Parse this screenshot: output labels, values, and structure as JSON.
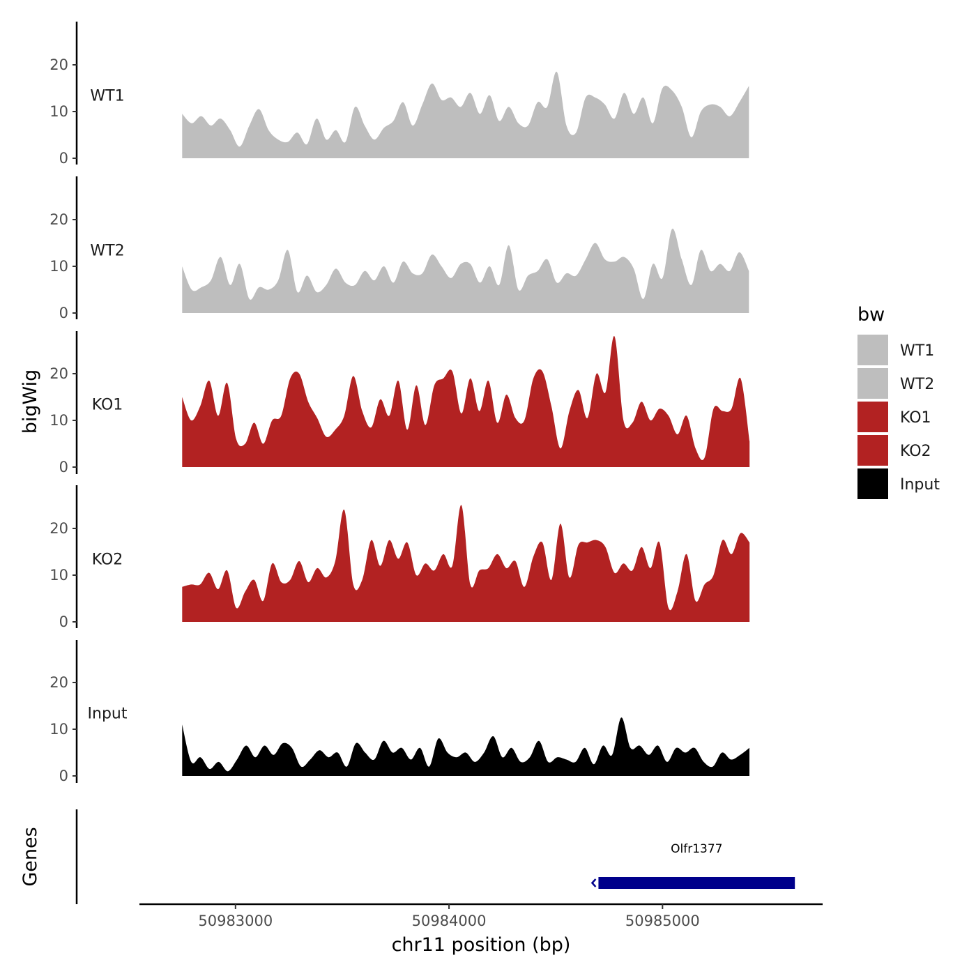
{
  "chart_data": {
    "type": "area",
    "title": "",
    "xlabel": "chr11 position (bp)",
    "ylabel": "bigWig",
    "genes_label": "Genes",
    "xlim": [
      50982550,
      50985750
    ],
    "ylim": [
      0,
      30
    ],
    "x_ticks": [
      50983000,
      50984000,
      50985000
    ],
    "x_tick_labels": [
      "50983000",
      "50984000",
      "50985000"
    ],
    "y_ticks": [
      0,
      10,
      20
    ],
    "y_tick_labels": [
      "0",
      "10",
      "20"
    ],
    "legend_title": "bw",
    "legend": [
      {
        "label": "WT1",
        "color": "#bebebe"
      },
      {
        "label": "WT2",
        "color": "#bebebe"
      },
      {
        "label": "KO1",
        "color": "#b22222"
      },
      {
        "label": "KO2",
        "color": "#b22222"
      },
      {
        "label": "Input",
        "color": "#000000"
      }
    ],
    "x_start": 50982750,
    "x_step": 45,
    "series": [
      {
        "name": "WT1",
        "label": "WT1",
        "color": "#bebebe",
        "values": [
          9.5,
          7.5,
          9,
          7,
          8.5,
          6,
          2.5,
          7,
          10.5,
          6,
          4,
          3.5,
          5.5,
          3,
          8.5,
          4,
          6,
          3.5,
          11,
          7,
          4,
          6.5,
          8,
          12,
          7,
          11.5,
          16,
          12.5,
          13,
          11,
          14,
          9.5,
          13.5,
          8,
          11,
          7.5,
          7,
          12,
          11,
          18.5,
          7,
          5.5,
          13,
          13,
          11.5,
          8.5,
          14,
          9.5,
          13,
          7.5,
          15,
          14.5,
          11,
          4.5,
          10,
          11.5,
          11,
          9,
          12,
          15.5
        ]
      },
      {
        "name": "WT2",
        "label": "WT2",
        "color": "#bebebe",
        "values": [
          10,
          5,
          5.5,
          7,
          12,
          6,
          10.5,
          3,
          5.5,
          5,
          7,
          13.5,
          4.5,
          8,
          4.5,
          6,
          9.5,
          6.5,
          6,
          9,
          7,
          10,
          6.5,
          11,
          8.5,
          8.5,
          12.5,
          10,
          7.5,
          10.5,
          10.5,
          6.5,
          10,
          6,
          14.5,
          5,
          8,
          9,
          11.5,
          6.5,
          8.5,
          8,
          11.5,
          15,
          11.5,
          11,
          12,
          9.5,
          3,
          10.5,
          7.5,
          18,
          11.5,
          6,
          13.5,
          9,
          10.5,
          9,
          13,
          9
        ]
      },
      {
        "name": "KO1",
        "label": "KO1",
        "color": "#b22222",
        "values": [
          15,
          10,
          13,
          18.5,
          11,
          18,
          6,
          5,
          9.5,
          5,
          10,
          11,
          19,
          20,
          14,
          10.5,
          6.5,
          8,
          11,
          19.5,
          12,
          8.5,
          14.5,
          11,
          18.5,
          8,
          17.5,
          9,
          17.5,
          19,
          20.5,
          11.5,
          19,
          12,
          18.5,
          9.5,
          15.5,
          10.5,
          10,
          19,
          20.5,
          13,
          4,
          12,
          16.5,
          10.5,
          20,
          16,
          28,
          10,
          9.5,
          14,
          10,
          12.5,
          11,
          7,
          11,
          4,
          2,
          12.5,
          12,
          12.5,
          19,
          5.5
        ]
      },
      {
        "name": "KO2",
        "label": "KO2",
        "color": "#b22222",
        "values": [
          7.5,
          8,
          8,
          10.5,
          7,
          11,
          3,
          6.5,
          9,
          4.5,
          12.5,
          8.5,
          9,
          13,
          8.5,
          11.5,
          9.5,
          13,
          24,
          8,
          9,
          17.5,
          12,
          17.5,
          13.5,
          17,
          10,
          12.5,
          11,
          14.5,
          12,
          25,
          8,
          11,
          11.5,
          14.5,
          11.5,
          13,
          7.5,
          14,
          17,
          9,
          21,
          9.5,
          16.5,
          17,
          17.5,
          16,
          10.5,
          12.5,
          11,
          16,
          11.5,
          17,
          3,
          6.5,
          14.5,
          4.5,
          8,
          10,
          17.5,
          14.5,
          19,
          17
        ]
      },
      {
        "name": "Input",
        "label": "Input",
        "color": "#000000",
        "values": [
          11,
          3,
          4,
          1.5,
          3,
          1,
          3.5,
          6.5,
          4,
          6.5,
          4.5,
          7,
          6,
          2,
          3.5,
          5.5,
          4,
          5,
          2,
          7,
          5,
          3.5,
          7.5,
          5,
          6,
          3.5,
          6,
          2,
          8,
          5,
          4,
          5,
          3,
          5,
          8.5,
          4,
          6,
          3,
          4,
          7.5,
          3,
          4,
          3.5,
          3,
          6,
          2.5,
          6.5,
          4.5,
          12.5,
          6,
          6.5,
          4.5,
          6.5,
          3,
          6,
          5,
          6,
          3,
          2,
          5,
          3.5,
          4.5,
          6
        ]
      }
    ],
    "genes": [
      {
        "name": "Olfr1377",
        "start": 50984700,
        "end": 50985620,
        "color": "#00008b"
      }
    ]
  }
}
